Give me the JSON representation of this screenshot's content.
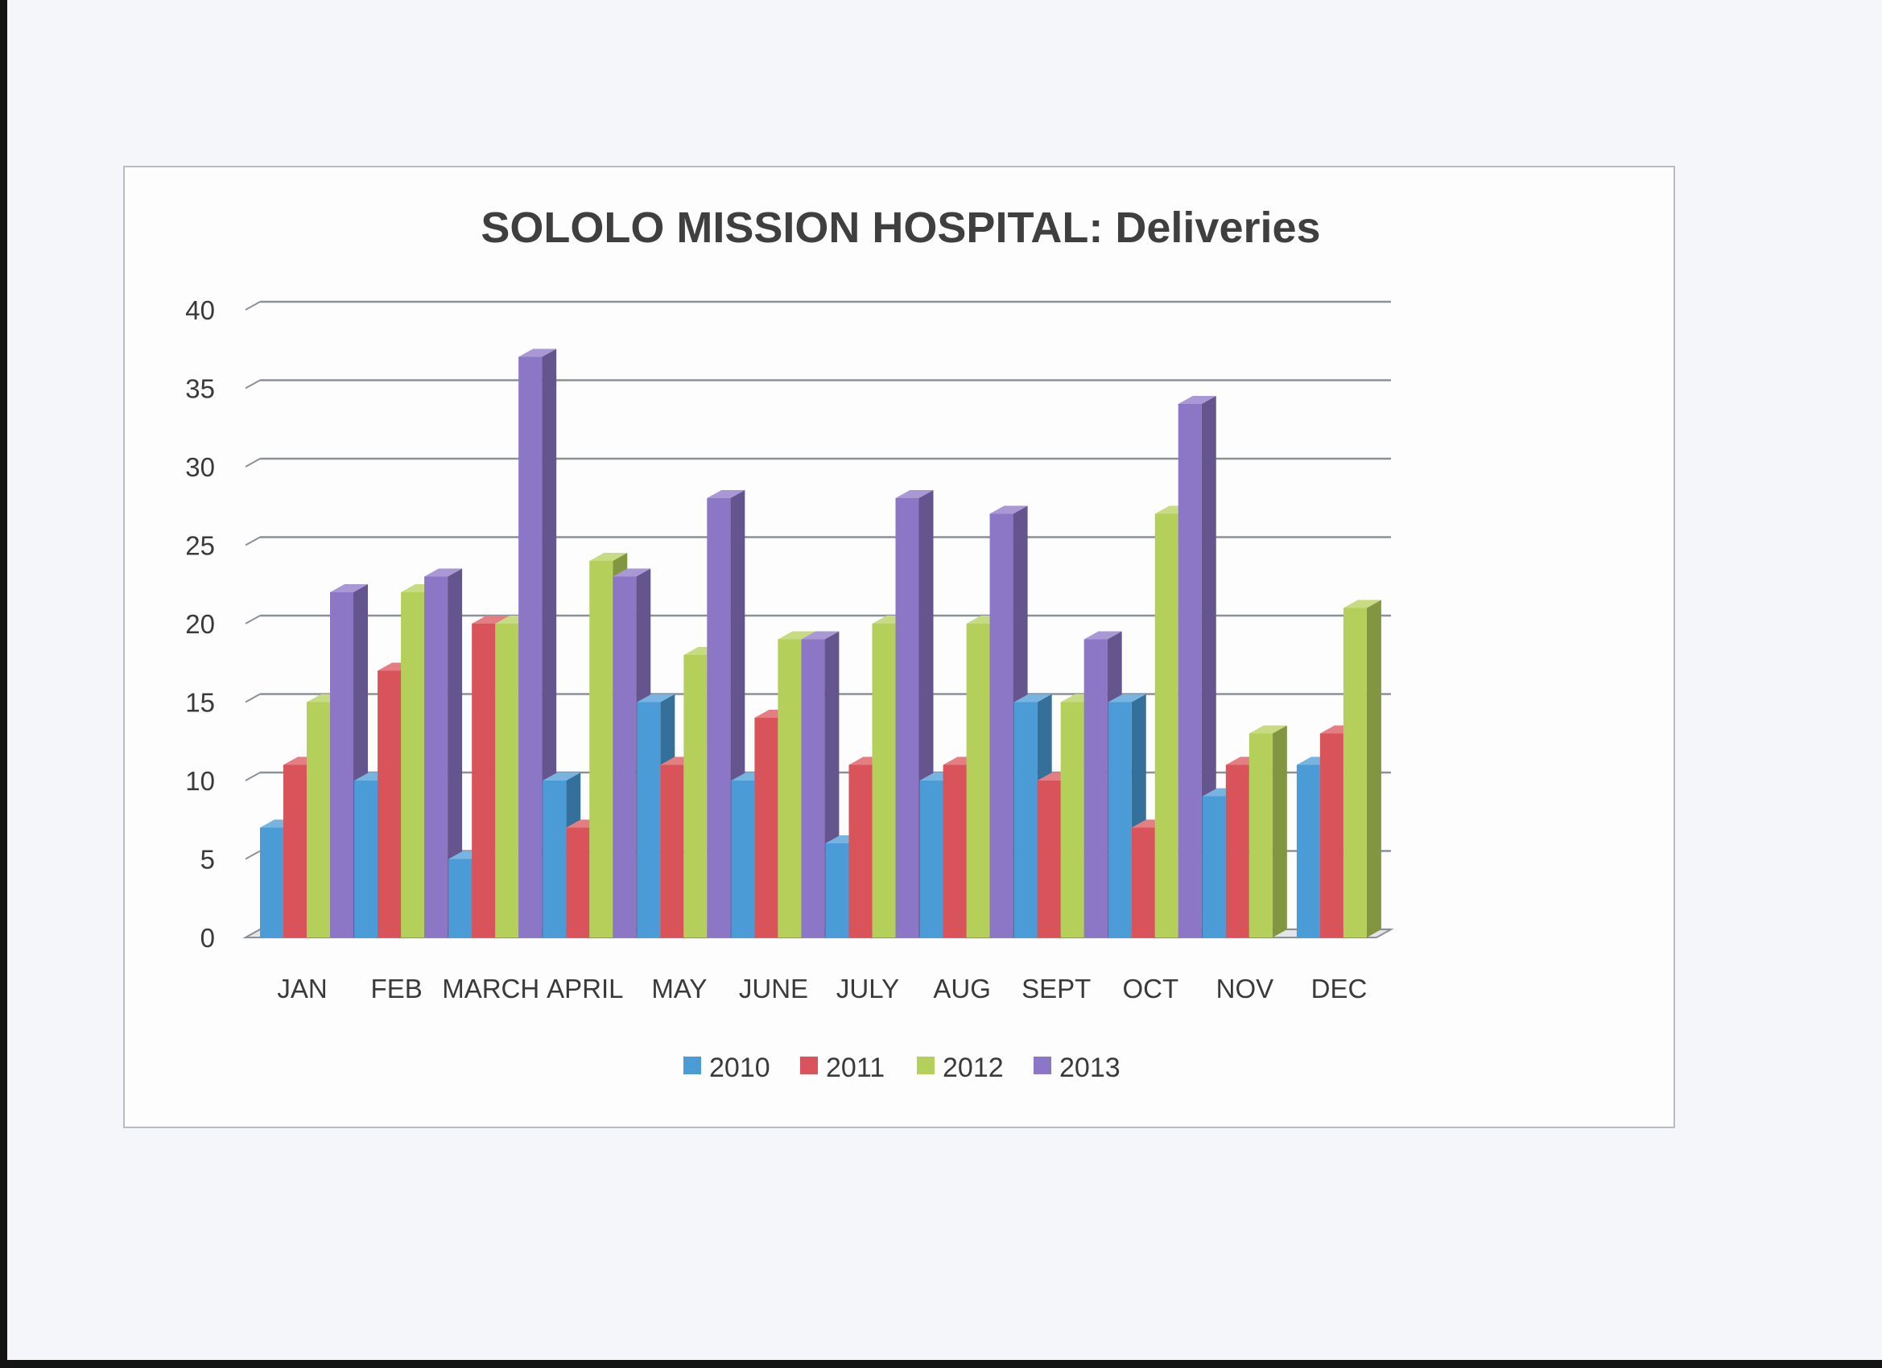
{
  "chart_data": {
    "type": "bar",
    "title": "SOLOLO MISSION HOSPITAL: Deliveries",
    "xlabel": "",
    "ylabel": "",
    "categories": [
      "JAN",
      "FEB",
      "MARCH",
      "APRIL",
      "MAY",
      "JUNE",
      "JULY",
      "AUG",
      "SEPT",
      "OCT",
      "NOV",
      "DEC"
    ],
    "series": [
      {
        "name": "2010",
        "color": "#4a9bd6",
        "values": [
          7,
          10,
          5,
          10,
          15,
          10,
          6,
          10,
          15,
          15,
          9,
          11
        ]
      },
      {
        "name": "2011",
        "color": "#d9545a",
        "values": [
          11,
          17,
          20,
          7,
          11,
          14,
          11,
          11,
          10,
          7,
          11,
          13
        ]
      },
      {
        "name": "2012",
        "color": "#b4cf5a",
        "values": [
          15,
          22,
          20,
          24,
          18,
          19,
          20,
          20,
          15,
          27,
          13,
          21
        ]
      },
      {
        "name": "2013",
        "color": "#8c76c6",
        "values": [
          22,
          23,
          37,
          23,
          28,
          19,
          28,
          27,
          19,
          34,
          null,
          null
        ]
      }
    ],
    "yticks": [
      0,
      5,
      10,
      15,
      20,
      25,
      30,
      35,
      40
    ],
    "ylim": [
      0,
      40
    ],
    "grid": true,
    "legend": "bottom",
    "style": "3d-clustered-column"
  }
}
